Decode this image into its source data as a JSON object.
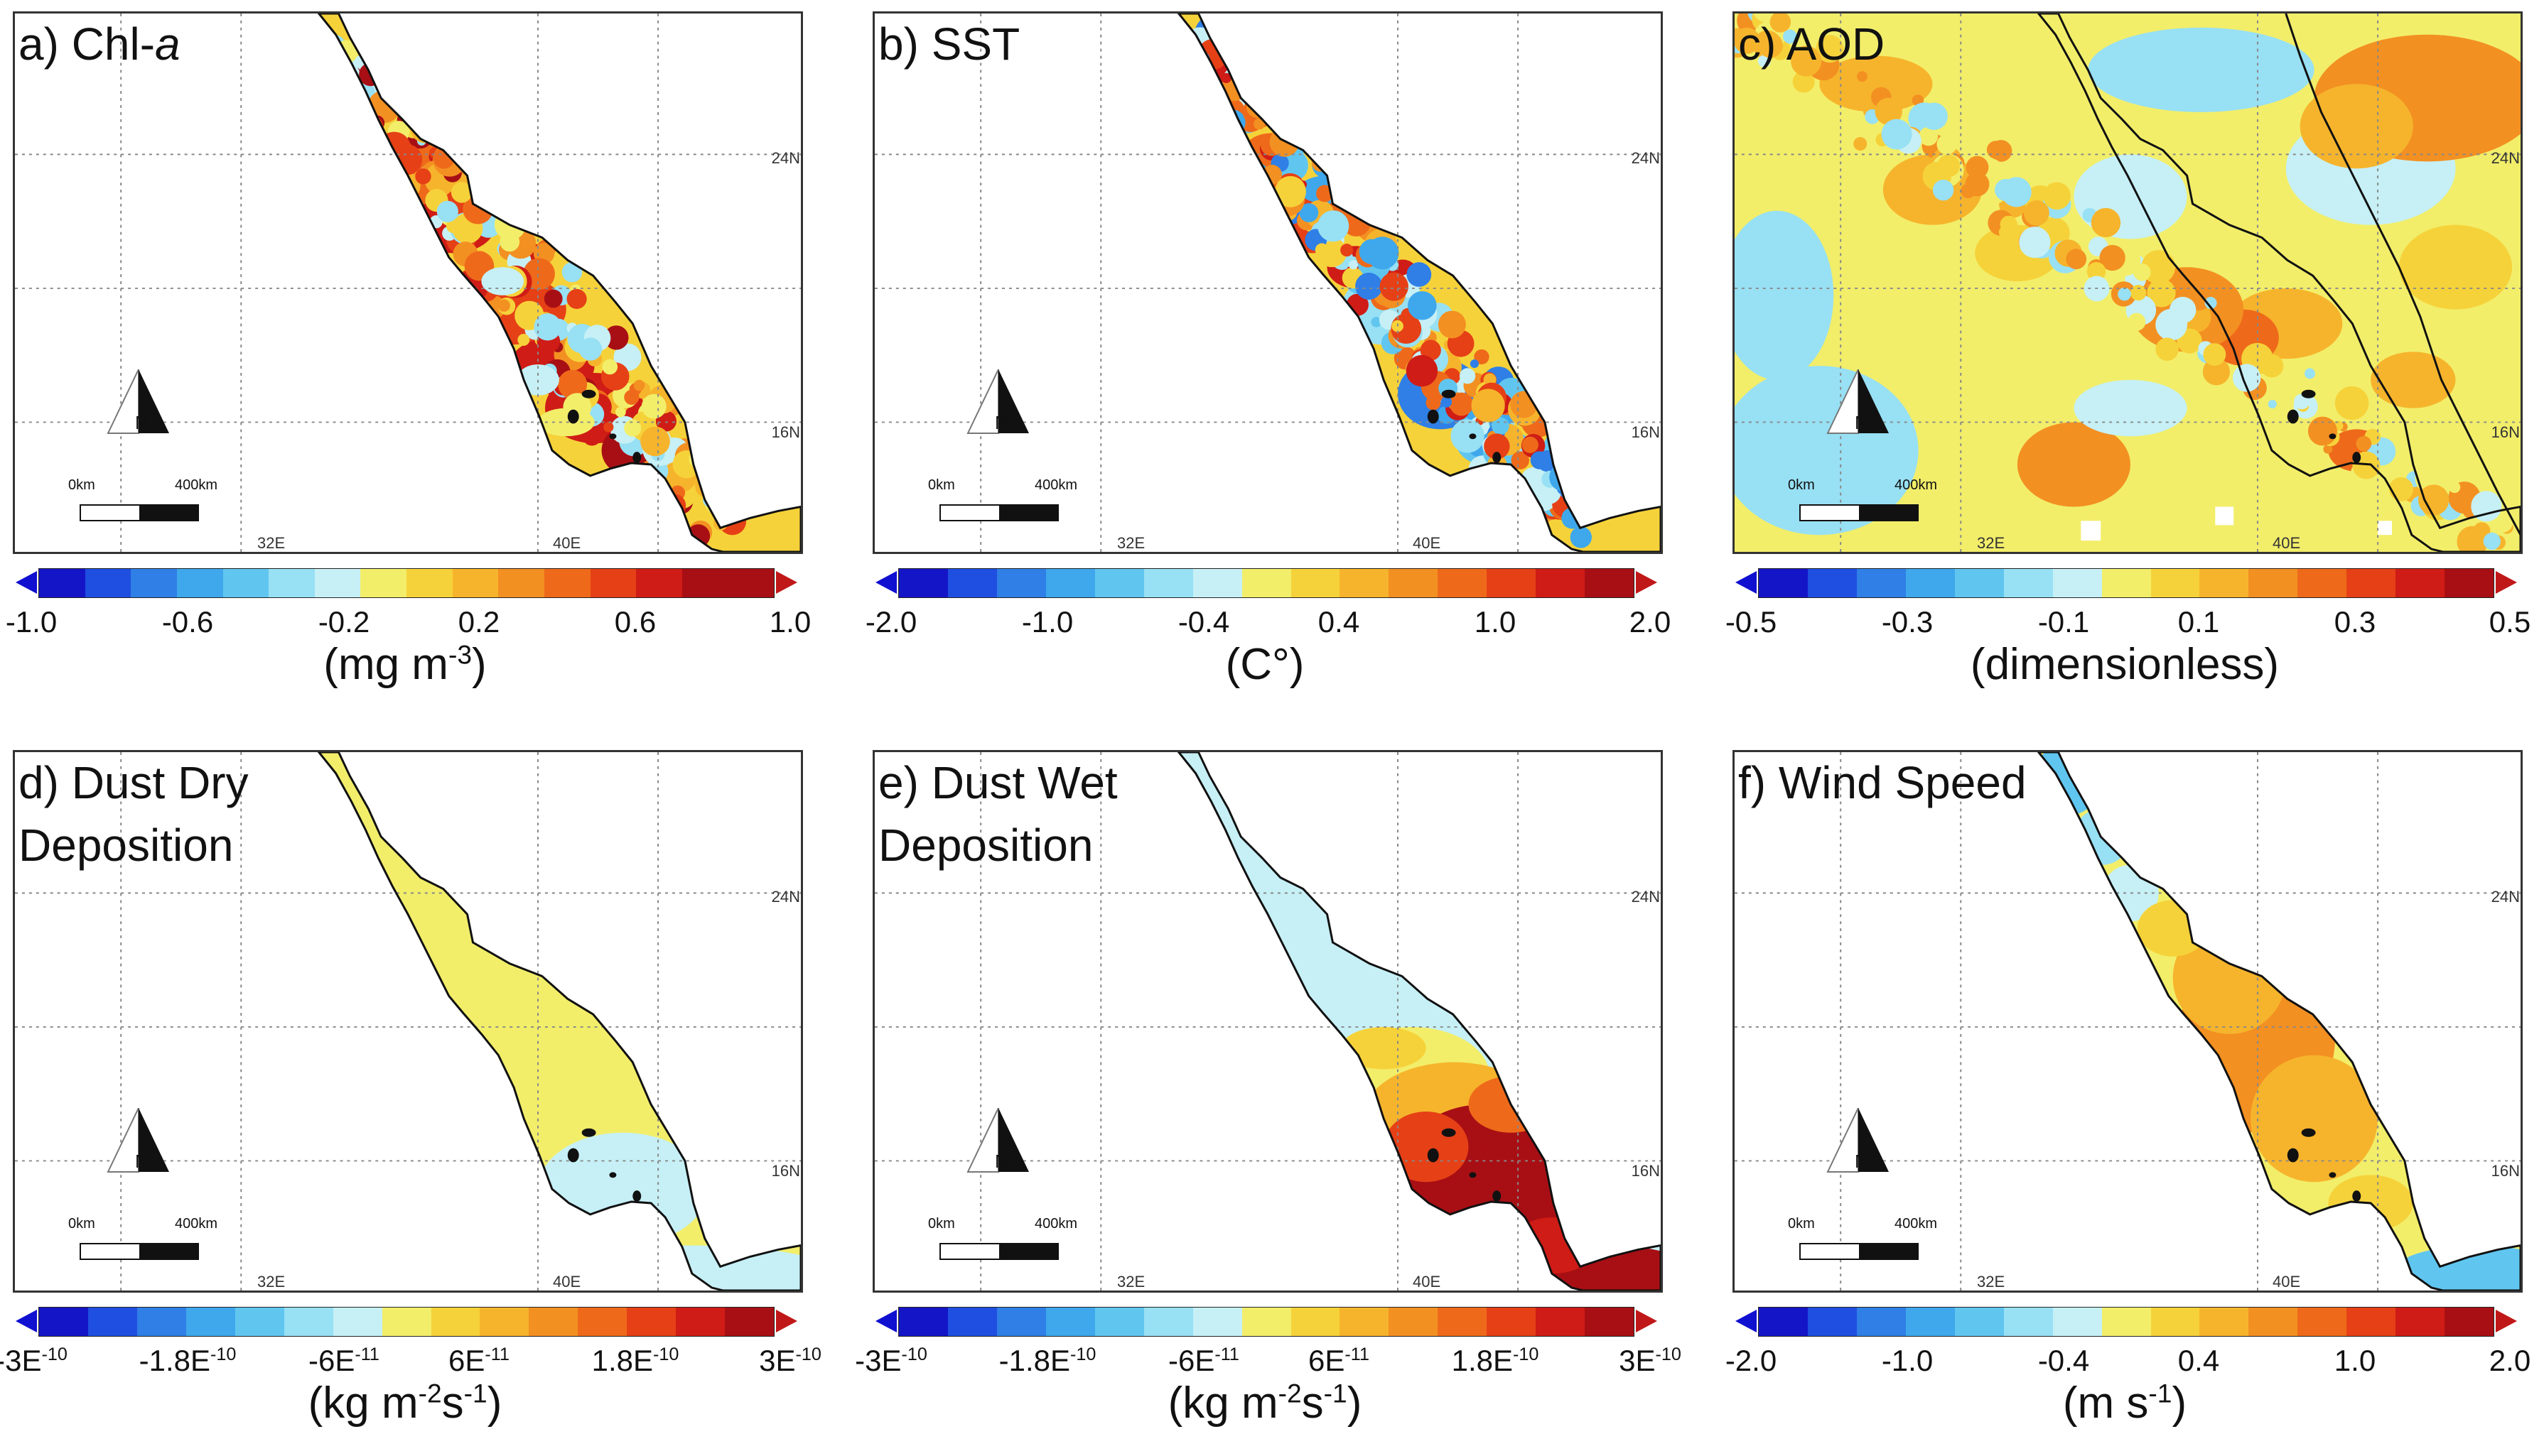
{
  "figure": {
    "colors": {
      "scale": [
        "#1515c8",
        "#1f4fe0",
        "#2f7fe6",
        "#3fa8ec",
        "#60c6f0",
        "#98e0f4",
        "#c6f0f6",
        "#f2ee6a",
        "#f6d23a",
        "#f6b42c",
        "#f39022",
        "#ee6a1a",
        "#e64016",
        "#cf1c16",
        "#a80f14"
      ],
      "tri_low": "#1010d0",
      "tri_high": "#c01818",
      "coast": "#111111",
      "grid": "#888888"
    },
    "map_labels": {
      "lat_24": "24N",
      "lat_16": "16N",
      "lon_32": "32E",
      "lon_40": "40E",
      "north": "N",
      "scale_0": "0km",
      "scale_400": "400km"
    },
    "panels": [
      {
        "id": "a",
        "title_lines": [
          "a) Chl-a"
        ],
        "title_italic_suffix": "a",
        "field": "chl",
        "ticks": [
          "-1.0",
          "-0.6",
          "-0.2",
          "0.2",
          "0.6",
          "1.0"
        ],
        "unit": "(mg m-3)"
      },
      {
        "id": "b",
        "title_lines": [
          "b) SST"
        ],
        "field": "sst",
        "ticks": [
          "-2.0",
          "-1.0",
          "-0.4",
          "0.4",
          "1.0",
          "2.0"
        ],
        "unit": "(C°)"
      },
      {
        "id": "c",
        "title_lines": [
          "c) AOD"
        ],
        "field": "aod",
        "ticks": [
          "-0.5",
          "-0.3",
          "-0.1",
          "0.1",
          "0.3",
          "0.5"
        ],
        "unit": "(dimensionless)"
      },
      {
        "id": "d",
        "title_lines": [
          "d) Dust Dry",
          "Deposition"
        ],
        "field": "dry",
        "ticks": [
          "-3E-10",
          "-1.8E-10",
          "-6E-11",
          "6E-11",
          "1.8E-10",
          "3E-10"
        ],
        "unit": "(kg m-2s-1)"
      },
      {
        "id": "e",
        "title_lines": [
          "e) Dust Wet",
          "Deposition"
        ],
        "field": "wet",
        "ticks": [
          "-3E-10",
          "-1.8E-10",
          "-6E-11",
          "6E-11",
          "1.8E-10",
          "3E-10"
        ],
        "unit": "(kg m-2s-1)"
      },
      {
        "id": "f",
        "title_lines": [
          "f) Wind Speed"
        ],
        "field": "wind",
        "ticks": [
          "-2.0",
          "-1.0",
          "-0.4",
          "0.4",
          "1.0",
          "2.0"
        ],
        "unit": "(m s-1)"
      }
    ]
  }
}
